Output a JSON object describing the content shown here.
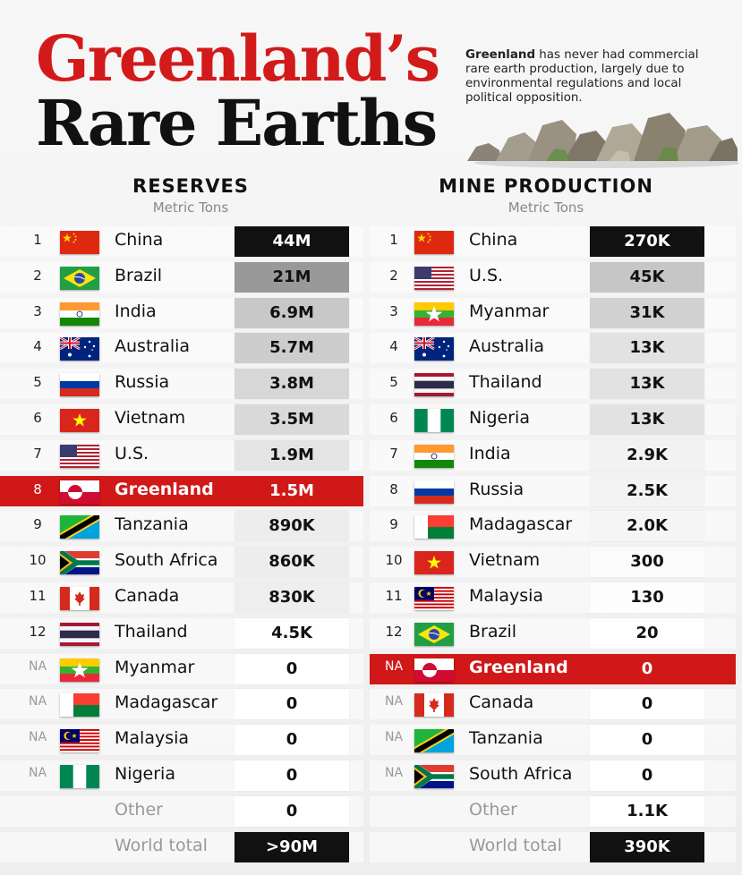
{
  "header": {
    "title_line1": "Greenland’s",
    "title_line2": "Rare Earths",
    "intro_bold": "Greenland",
    "intro_text": " has never had commercial rare earth production, largely due to environmental regulations and local political opposition."
  },
  "colors": {
    "accent_red": "#d31a1a",
    "highlight_row": "#d01818",
    "dark_box": "#111111"
  },
  "chart_data": [
    {
      "type": "table",
      "title": "RESERVES",
      "unit": "Metric Tons",
      "rows": [
        {
          "rank": "1",
          "country": "China",
          "flag": "cn",
          "value": 44000000,
          "label": "44M"
        },
        {
          "rank": "2",
          "country": "Brazil",
          "flag": "br",
          "value": 21000000,
          "label": "21M"
        },
        {
          "rank": "3",
          "country": "India",
          "flag": "in",
          "value": 6900000,
          "label": "6.9M"
        },
        {
          "rank": "4",
          "country": "Australia",
          "flag": "au",
          "value": 5700000,
          "label": "5.7M"
        },
        {
          "rank": "5",
          "country": "Russia",
          "flag": "ru",
          "value": 3800000,
          "label": "3.8M"
        },
        {
          "rank": "6",
          "country": "Vietnam",
          "flag": "vn",
          "value": 3500000,
          "label": "3.5M"
        },
        {
          "rank": "7",
          "country": "U.S.",
          "flag": "us",
          "value": 1900000,
          "label": "1.9M"
        },
        {
          "rank": "8",
          "country": "Greenland",
          "flag": "gl",
          "value": 1500000,
          "label": "1.5M",
          "highlight": true
        },
        {
          "rank": "9",
          "country": "Tanzania",
          "flag": "tz",
          "value": 890000,
          "label": "890K"
        },
        {
          "rank": "10",
          "country": "South Africa",
          "flag": "za",
          "value": 860000,
          "label": "860K"
        },
        {
          "rank": "11",
          "country": "Canada",
          "flag": "ca",
          "value": 830000,
          "label": "830K"
        },
        {
          "rank": "12",
          "country": "Thailand",
          "flag": "th",
          "value": 4500,
          "label": "4.5K"
        },
        {
          "rank": "NA",
          "country": "Myanmar",
          "flag": "mm",
          "value": 0,
          "label": "0"
        },
        {
          "rank": "NA",
          "country": "Madagascar",
          "flag": "mg",
          "value": 0,
          "label": "0"
        },
        {
          "rank": "NA",
          "country": "Malaysia",
          "flag": "my",
          "value": 0,
          "label": "0"
        },
        {
          "rank": "NA",
          "country": "Nigeria",
          "flag": "ng",
          "value": 0,
          "label": "0"
        },
        {
          "rank": "",
          "country": "Other",
          "flag": "",
          "value": 0,
          "label": "0",
          "muted": true
        },
        {
          "rank": "",
          "country": "World total",
          "flag": "",
          "value": 90000000,
          "label": ">90M",
          "muted": true,
          "total": true
        }
      ]
    },
    {
      "type": "table",
      "title": "MINE PRODUCTION",
      "unit": "Metric Tons",
      "rows": [
        {
          "rank": "1",
          "country": "China",
          "flag": "cn",
          "value": 270000,
          "label": "270K"
        },
        {
          "rank": "2",
          "country": "U.S.",
          "flag": "us",
          "value": 45000,
          "label": "45K"
        },
        {
          "rank": "3",
          "country": "Myanmar",
          "flag": "mm",
          "value": 31000,
          "label": "31K"
        },
        {
          "rank": "4",
          "country": "Australia",
          "flag": "au",
          "value": 13000,
          "label": "13K"
        },
        {
          "rank": "5",
          "country": "Thailand",
          "flag": "th",
          "value": 13000,
          "label": "13K"
        },
        {
          "rank": "6",
          "country": "Nigeria",
          "flag": "ng",
          "value": 13000,
          "label": "13K"
        },
        {
          "rank": "7",
          "country": "India",
          "flag": "in",
          "value": 2900,
          "label": "2.9K"
        },
        {
          "rank": "8",
          "country": "Russia",
          "flag": "ru",
          "value": 2500,
          "label": "2.5K"
        },
        {
          "rank": "9",
          "country": "Madagascar",
          "flag": "mg",
          "value": 2000,
          "label": "2.0K"
        },
        {
          "rank": "10",
          "country": "Vietnam",
          "flag": "vn",
          "value": 300,
          "label": "300"
        },
        {
          "rank": "11",
          "country": "Malaysia",
          "flag": "my",
          "value": 130,
          "label": "130"
        },
        {
          "rank": "12",
          "country": "Brazil",
          "flag": "br",
          "value": 20,
          "label": "20"
        },
        {
          "rank": "NA",
          "country": "Greenland",
          "flag": "gl",
          "value": 0,
          "label": "0",
          "highlight": true
        },
        {
          "rank": "NA",
          "country": "Canada",
          "flag": "ca",
          "value": 0,
          "label": "0"
        },
        {
          "rank": "NA",
          "country": "Tanzania",
          "flag": "tz",
          "value": 0,
          "label": "0"
        },
        {
          "rank": "NA",
          "country": "South Africa",
          "flag": "za",
          "value": 0,
          "label": "0"
        },
        {
          "rank": "",
          "country": "Other",
          "flag": "",
          "value": 1100,
          "label": "1.1K",
          "muted": true
        },
        {
          "rank": "",
          "country": "World total",
          "flag": "",
          "value": 390000,
          "label": "390K",
          "muted": true,
          "total": true
        }
      ]
    }
  ]
}
